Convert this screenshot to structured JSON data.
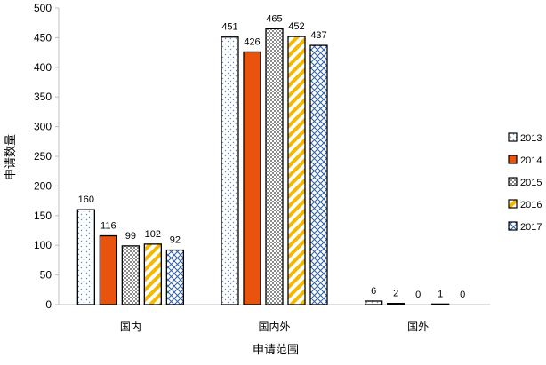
{
  "chart_data": {
    "type": "bar",
    "title": "",
    "xlabel": "申请范围",
    "ylabel": "申请数量",
    "ylim": [
      0,
      500
    ],
    "yticks": [
      0,
      50,
      100,
      150,
      200,
      250,
      300,
      350,
      400,
      450,
      500
    ],
    "grid": false,
    "legend_position": "right",
    "categories": [
      "国内",
      "国内外",
      "国外"
    ],
    "series": [
      {
        "name": "2013",
        "values": [
          160,
          451,
          6
        ],
        "fill": "#ffffff",
        "pattern": "dots",
        "pattern_color": "#5b8fc9"
      },
      {
        "name": "2014",
        "values": [
          116,
          426,
          2
        ],
        "fill": "#e8530e",
        "pattern": "solid",
        "pattern_color": "#e8530e"
      },
      {
        "name": "2015",
        "values": [
          99,
          465,
          0
        ],
        "fill": "#ffffff",
        "pattern": "checker",
        "pattern_color": "#7f7f7f"
      },
      {
        "name": "2016",
        "values": [
          102,
          452,
          1
        ],
        "fill": "#ffffff",
        "pattern": "diagonal",
        "pattern_color": "#f5b800"
      },
      {
        "name": "2017",
        "values": [
          92,
          437,
          0
        ],
        "fill": "#ffffff",
        "pattern": "diamond",
        "pattern_color": "#2e5fa8"
      }
    ]
  }
}
